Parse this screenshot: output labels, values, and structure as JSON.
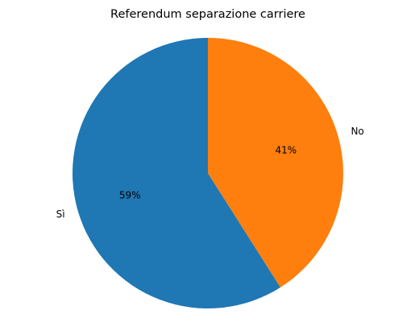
{
  "chart_data": {
    "type": "pie",
    "title": "Referendum separazione carriere",
    "categories": [
      "Sì",
      "No"
    ],
    "values": [
      59,
      41
    ],
    "value_labels": [
      "59%",
      "41%"
    ],
    "colors": [
      "#1f77b4",
      "#ff7f0e"
    ],
    "startangle": 90
  }
}
